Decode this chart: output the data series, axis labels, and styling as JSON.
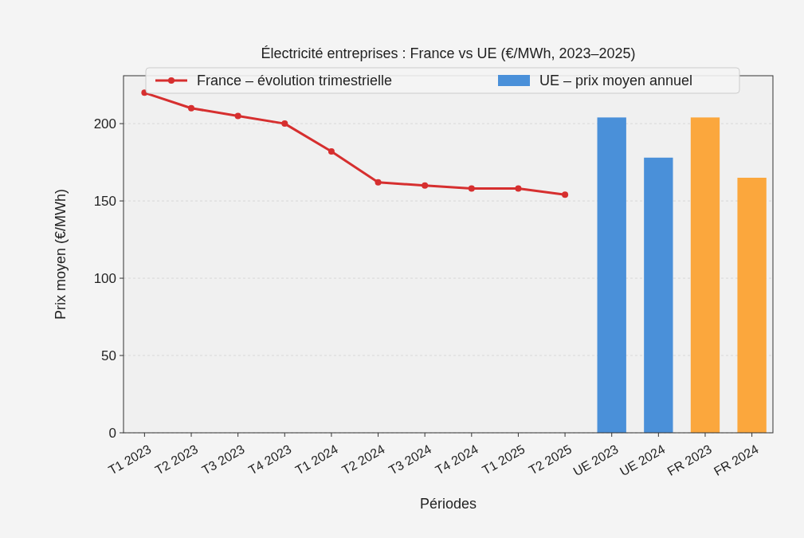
{
  "chart_data": {
    "type": "line",
    "title": "Électricité entreprises : France vs UE (€/MWh, 2023–2025)",
    "xlabel": "Périodes",
    "ylabel": "Prix moyen (€/MWh)",
    "categories": [
      "T1 2023",
      "T2 2023",
      "T3 2023",
      "T4 2023",
      "T1 2024",
      "T2 2024",
      "T3 2024",
      "T4 2024",
      "T1 2025",
      "T2 2025",
      "UE 2023",
      "UE 2024",
      "FR 2023",
      "FR 2024"
    ],
    "series": [
      {
        "name": "France – évolution trimestrielle",
        "color": "#d62f2f",
        "marker": "circle",
        "values": [
          220,
          210,
          205,
          200,
          182,
          162,
          160,
          158,
          158,
          154,
          null,
          null,
          null,
          null
        ]
      },
      {
        "name": "UE – prix moyen annuel",
        "type": "bar",
        "color": "#4a90d9",
        "colors": [
          null,
          null,
          null,
          null,
          null,
          null,
          null,
          null,
          null,
          null,
          "#4a90d9",
          "#4a90d9",
          "#fba73d",
          "#fba73d"
        ],
        "values": [
          null,
          null,
          null,
          null,
          null,
          null,
          null,
          null,
          null,
          null,
          204,
          178,
          204,
          165
        ]
      }
    ],
    "ylim": [
      0,
      231
    ],
    "yticks": [
      0,
      50,
      100,
      150,
      200
    ],
    "grid": "y",
    "legend": "top"
  }
}
